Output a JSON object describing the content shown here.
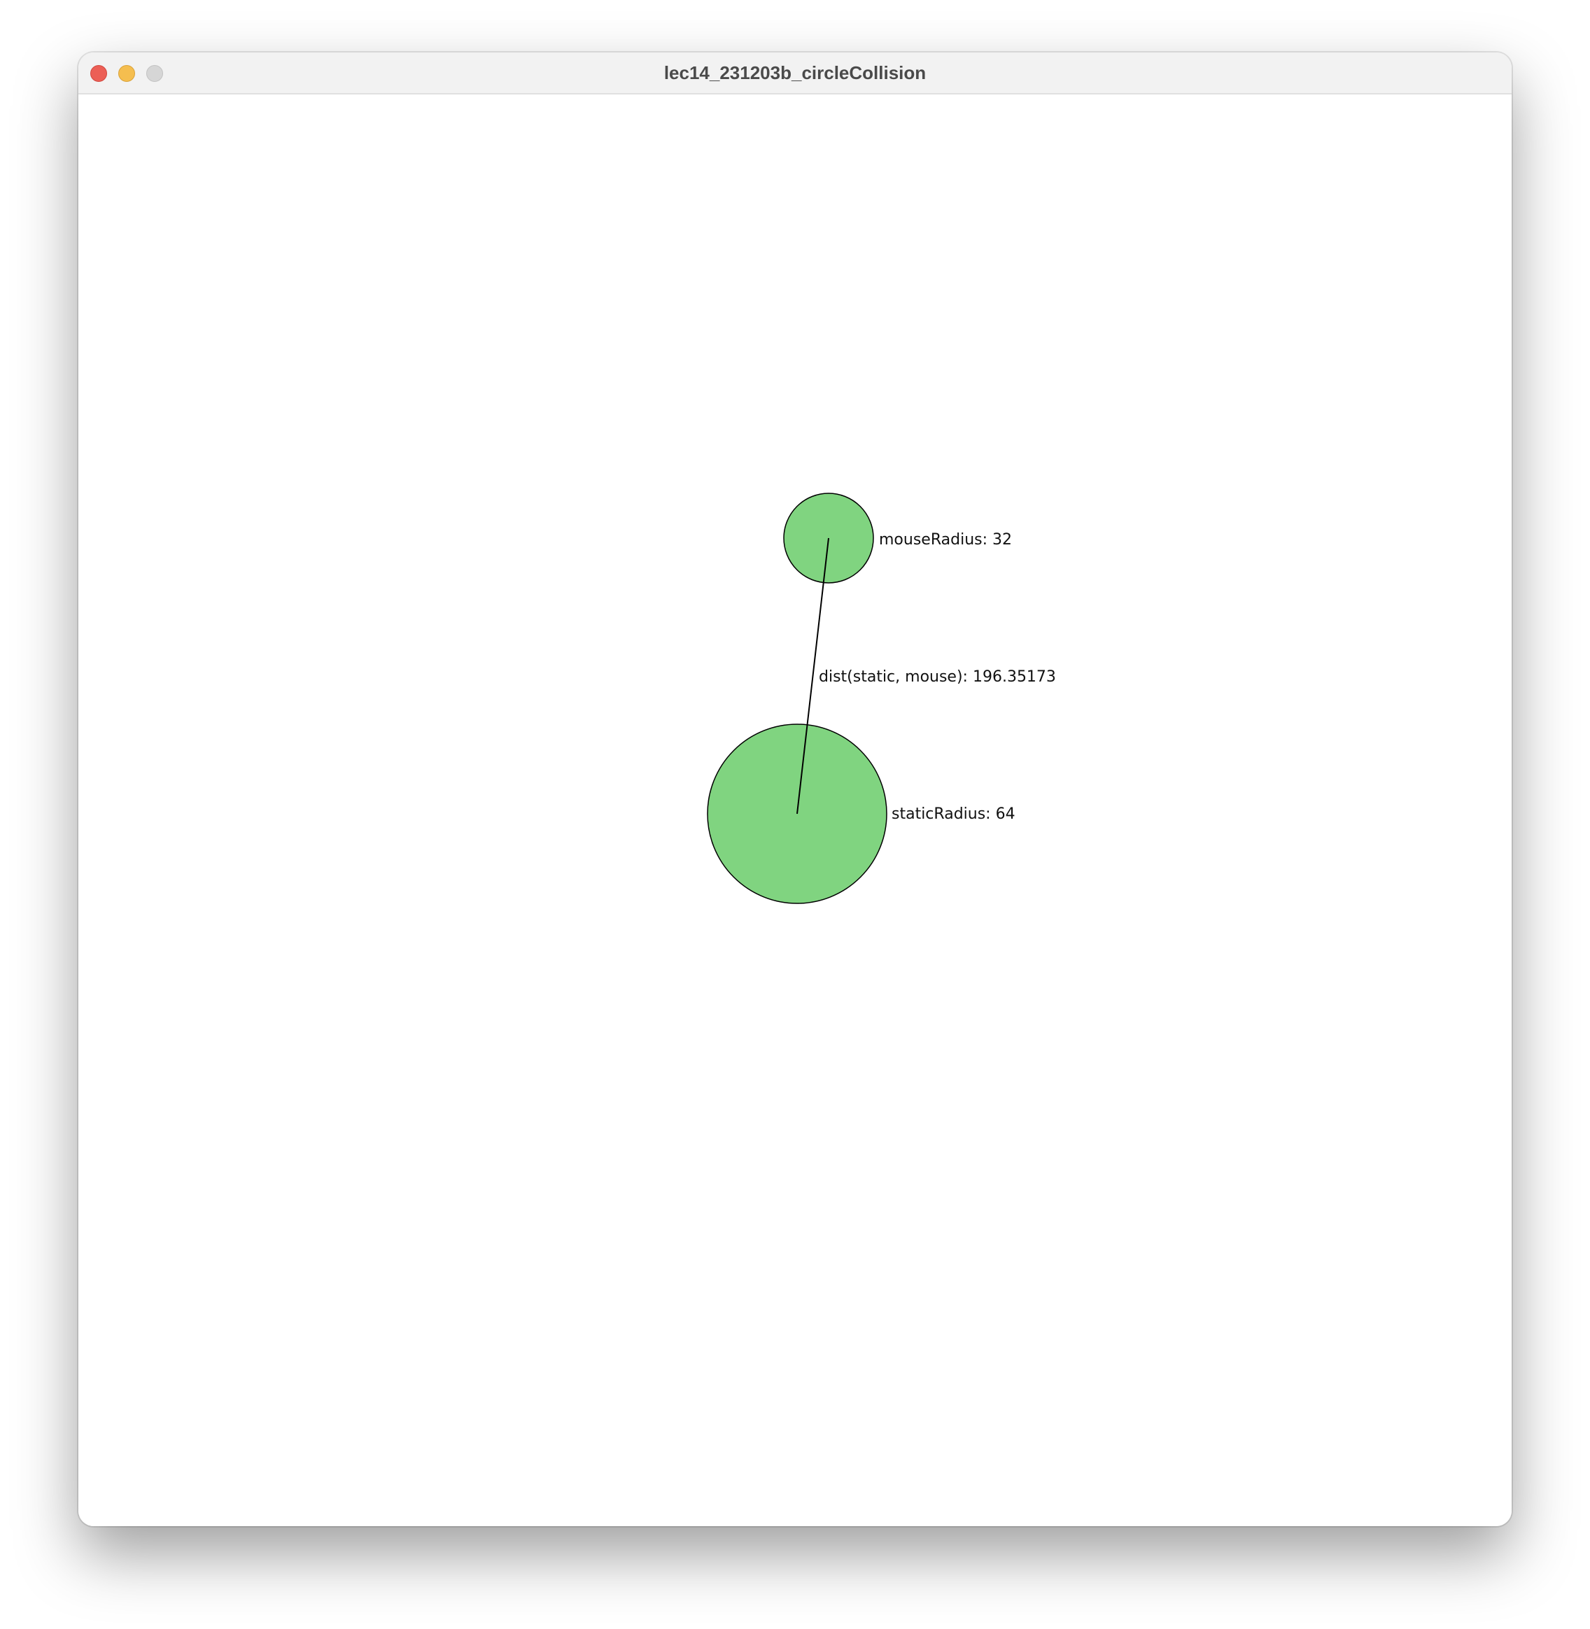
{
  "window": {
    "title": "lec14_231203b_circleCollision"
  },
  "sketch": {
    "circle_fill": "#80d480",
    "stroke_color": "#000000",
    "mouse_label": "mouseRadius: 32",
    "static_label": "staticRadius: 64",
    "distance_label": "dist(static, mouse): 196.35173"
  }
}
